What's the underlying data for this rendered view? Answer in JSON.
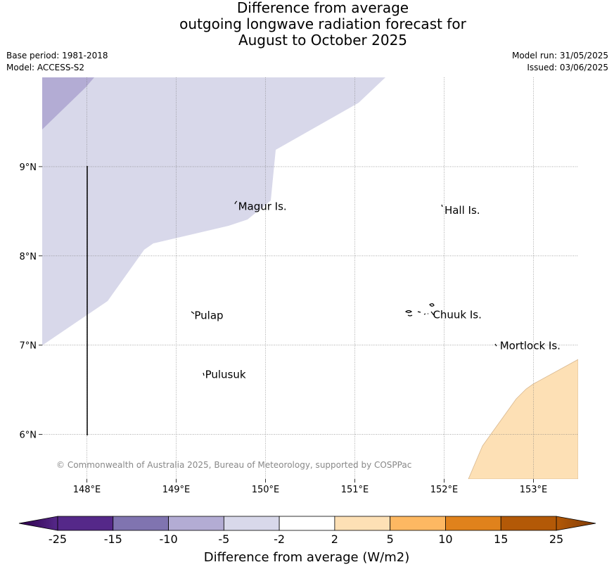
{
  "header": {
    "title_lines": [
      "Difference from average",
      "outgoing longwave radiation forecast for",
      "August to October 2025"
    ],
    "base_period": "Base period: 1981-2018",
    "model": "Model: ACCESS-S2",
    "model_run": "Model run: 31/05/2025",
    "issued": "Issued: 03/06/2025"
  },
  "map": {
    "lon_range": [
      147.5,
      153.5
    ],
    "lat_range": [
      5.5,
      10
    ],
    "lon_ticks": [
      {
        "value": 148,
        "label": "148°E"
      },
      {
        "value": 149,
        "label": "149°E"
      },
      {
        "value": 150,
        "label": "150°E"
      },
      {
        "value": 151,
        "label": "151°E"
      },
      {
        "value": 152,
        "label": "152°E"
      },
      {
        "value": 153,
        "label": "153°E"
      }
    ],
    "lat_ticks": [
      {
        "value": 9,
        "label": "9°N"
      },
      {
        "value": 8,
        "label": "8°N"
      },
      {
        "value": 7,
        "label": "7°N"
      },
      {
        "value": 6,
        "label": "6°N"
      }
    ],
    "places": [
      {
        "name": "Magur Is.",
        "lon": 149.67,
        "lat": 8.56
      },
      {
        "name": "Hall Is.",
        "lon": 151.98,
        "lat": 8.52
      },
      {
        "name": "Pulap",
        "lon": 149.18,
        "lat": 7.34
      },
      {
        "name": "Chuuk Is.",
        "lon": 151.85,
        "lat": 7.35
      },
      {
        "name": "Mortlock Is.",
        "lon": 152.6,
        "lat": 7.0
      },
      {
        "name": "Pulusuk",
        "lon": 149.3,
        "lat": 6.68
      }
    ],
    "copyright": "© Commonwealth of Australia 2025, Bureau of Meteorology, supported by COSPPac",
    "colors": {
      "range_neg5_neg2": "#d8d8ea",
      "range_neg10_neg5": "#b3acd4",
      "range_2_5": "#fde0b5"
    }
  },
  "colorbar": {
    "title": "Difference from average (W/m2)",
    "ticks": [
      "-25",
      "-15",
      "-10",
      "-5",
      "-2",
      "2",
      "5",
      "10",
      "15",
      "25"
    ],
    "colors": [
      "#552889",
      "#8074b0",
      "#b3acd4",
      "#d8d8ea",
      "#ffffff",
      "#fde0b5",
      "#fdb862",
      "#e0821c",
      "#b35907"
    ],
    "extend_low_color": "#2d004b",
    "extend_high_color": "#7f3b08"
  }
}
